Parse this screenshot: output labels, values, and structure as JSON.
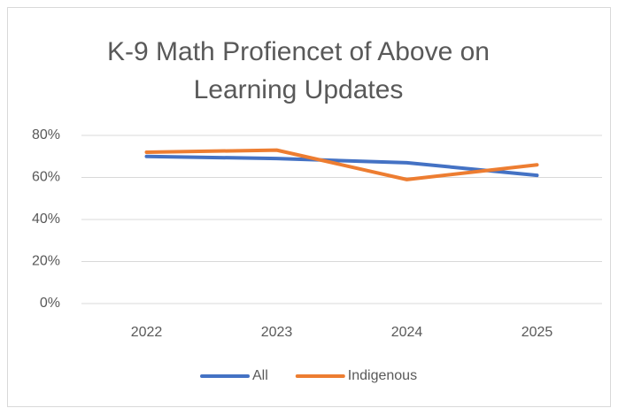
{
  "chart_data": {
    "type": "line",
    "title": [
      "K-9 Math Profiencet of Above on",
      "Learning Updates"
    ],
    "categories": [
      "2022",
      "2023",
      "2024",
      "2025"
    ],
    "series": [
      {
        "name": "All",
        "color": "#4472c4",
        "values": [
          70,
          69,
          67,
          61
        ]
      },
      {
        "name": "Indigenous",
        "color": "#ed7d31",
        "values": [
          72,
          73,
          59,
          66
        ]
      }
    ],
    "ylim": [
      0,
      80
    ],
    "yticks": [
      {
        "value": 0,
        "label": "0%"
      },
      {
        "value": 20,
        "label": "20%"
      },
      {
        "value": 40,
        "label": "40%"
      },
      {
        "value": 60,
        "label": "60%"
      },
      {
        "value": 80,
        "label": "80%"
      }
    ],
    "grid": true,
    "legend": "bottom"
  }
}
